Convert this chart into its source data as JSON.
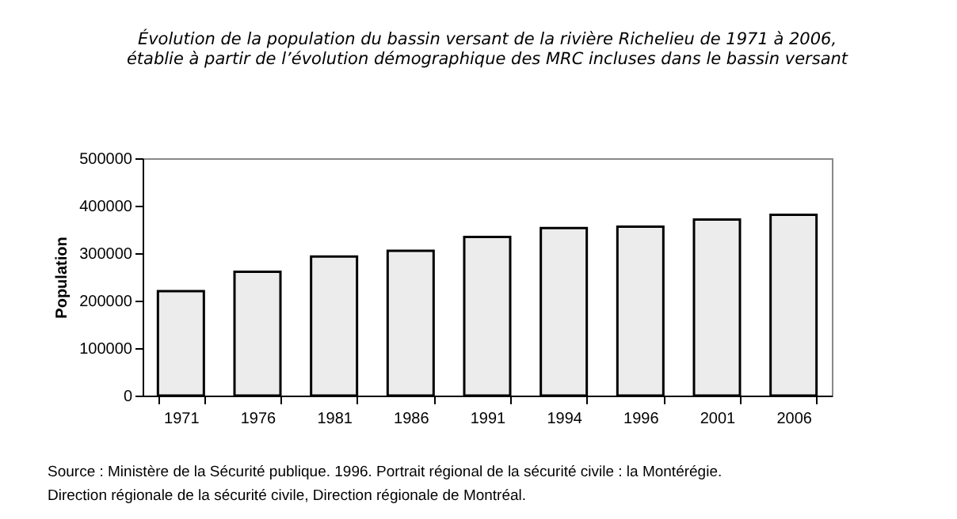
{
  "chart_data": {
    "type": "bar",
    "title": "Évolution de la population du bassin versant de la rivière Richelieu de 1971 à 2006, établie à partir de l’évolution démographique des MRC incluses dans le bassin versant",
    "ylabel": "Population",
    "categories": [
      "1971",
      "1976",
      "1981",
      "1986",
      "1991",
      "1994",
      "1996",
      "2001",
      "2006"
    ],
    "values": [
      220000,
      261000,
      293000,
      305000,
      334000,
      353000,
      356000,
      371000,
      381000
    ],
    "color": "#ececec",
    "ylim": [
      0,
      500000
    ],
    "yticks": [
      0,
      100000,
      200000,
      300000,
      400000,
      500000
    ],
    "grid": false,
    "annotations": [
      "Source : Ministère de la Sécurité publique. 1996. Portrait régional de la sécurité civile : la Montérégie.",
      "Direction régionale de la sécurité civile, Direction régionale de Montréal."
    ]
  }
}
